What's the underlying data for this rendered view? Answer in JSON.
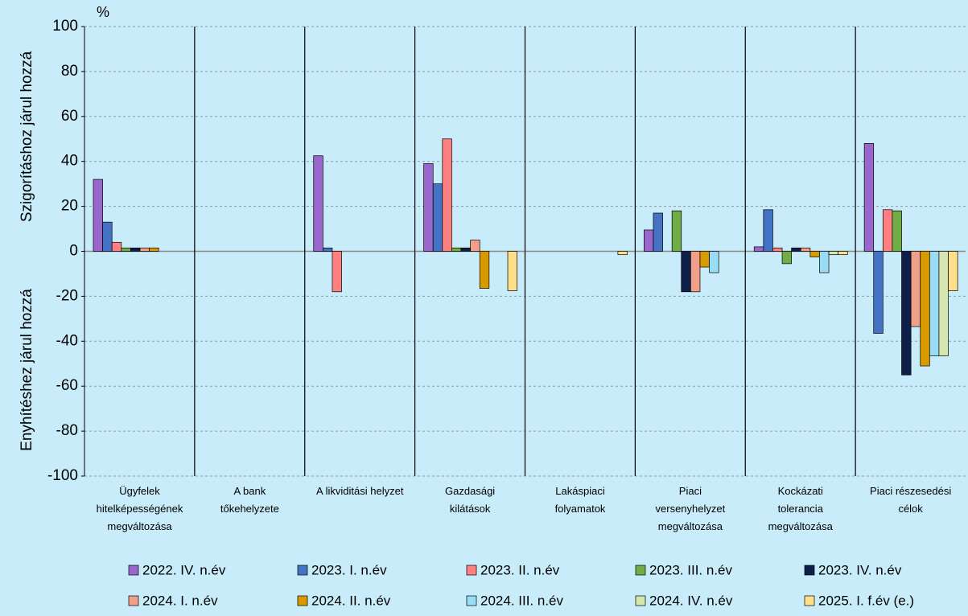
{
  "chart_data": {
    "type": "bar",
    "unit": "%",
    "ylabel_upper": "Szigorításhoz járul hozzá",
    "ylabel_lower": "Enyhítéshez járul hozzá",
    "categories": [
      "Ügyfelek\nhitelképességének\nmegváltozása",
      "A bank\ntőkehelyzete",
      "A likviditási helyzet",
      "Gazdasági\nkilátások",
      "Lakáspiaci\nfolyamatok",
      "Piaci\nversenyhelyzet\nmegváltozása",
      "Kockázati\ntolerancia\nmegváltozása",
      "Piaci részesedési\ncélok"
    ],
    "series": [
      {
        "name": "2022. IV. n.év",
        "color": "#9966cc",
        "values": [
          32,
          0,
          42.5,
          39,
          0,
          9.5,
          2,
          48
        ]
      },
      {
        "name": "2023. I. n.év",
        "color": "#4472c4",
        "values": [
          13,
          0,
          1.5,
          30,
          0,
          17,
          18.5,
          -36.5
        ]
      },
      {
        "name": "2023. II. n.év",
        "color": "#ff8080",
        "values": [
          4,
          0,
          -18,
          50,
          0,
          0,
          1.5,
          18.5
        ]
      },
      {
        "name": "2023. III. n.év",
        "color": "#70ad47",
        "values": [
          1.5,
          0,
          0,
          1.5,
          0,
          18,
          -5.5,
          18
        ]
      },
      {
        "name": "2023. IV. n.év",
        "color": "#0f1f4a",
        "values": [
          1.5,
          0,
          0,
          1.5,
          0,
          -18,
          1.5,
          -55
        ]
      },
      {
        "name": "2024. I. n.év",
        "color": "#f0a088",
        "values": [
          1.5,
          0,
          0,
          5,
          0,
          -18,
          1.5,
          -33.5
        ]
      },
      {
        "name": "2024. II. n.év",
        "color": "#d99a00",
        "values": [
          1.5,
          0,
          0,
          -16.5,
          0,
          -7,
          -2.5,
          -51
        ]
      },
      {
        "name": "2024. III. n.év",
        "color": "#99ddf5",
        "values": [
          0,
          0,
          0,
          0,
          0,
          -9.5,
          -9.5,
          -46.5
        ]
      },
      {
        "name": "2024. IV. n.év",
        "color": "#d6e6b0",
        "values": [
          0,
          0,
          0,
          0,
          0,
          0,
          -1.5,
          -46.5
        ]
      },
      {
        "name": "2025. I. f.év (e.)",
        "color": "#ffe08a",
        "values": [
          0,
          0,
          0,
          -17.5,
          -1.5,
          0,
          -1.5,
          -17.5
        ]
      }
    ],
    "ylim": [
      -100,
      100
    ],
    "yticks": [
      -100,
      -80,
      -60,
      -40,
      -20,
      0,
      20,
      40,
      60,
      80,
      100
    ],
    "grid": true
  }
}
